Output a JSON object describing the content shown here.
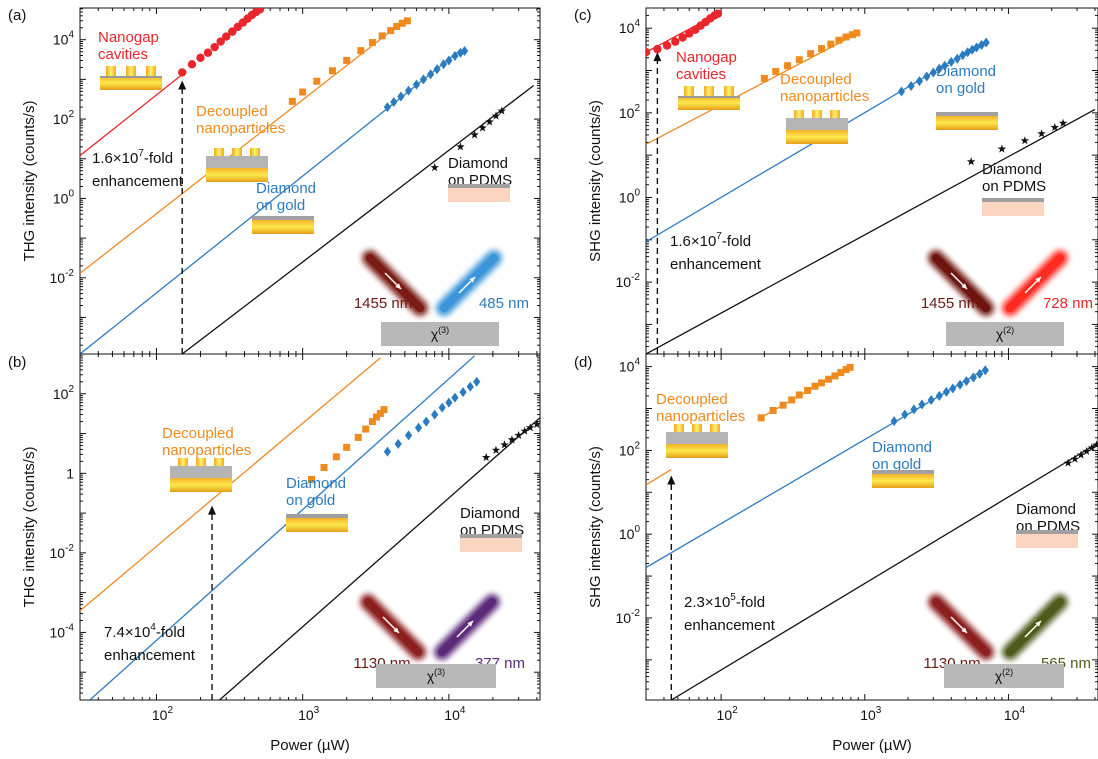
{
  "figure": {
    "xlabel": "Power (µW)"
  },
  "chart_data": [
    {
      "panel": "(a)",
      "type": "line",
      "ylabel": "THG intensity (counts/s)",
      "xscale": "log",
      "yscale": "log",
      "xlim": [
        30,
        42000
      ],
      "ylim": [
        0.00012,
        63000
      ],
      "xticks": [
        "10^2",
        "10^3",
        "10^4"
      ],
      "yticks": [
        "10^-2",
        "10^0",
        "10^2",
        "10^4"
      ],
      "series": [
        {
          "name": "Nanogap cavities",
          "color": "#e8262b",
          "marker": "circle",
          "fit": [
            [
              30,
              12
            ],
            [
              160,
              1600
            ]
          ],
          "points": [
            [
              150,
              1500
            ],
            [
              175,
              2400
            ],
            [
              200,
              3500
            ],
            [
              225,
              4700
            ],
            [
              250,
              6500
            ],
            [
              275,
              9000
            ],
            [
              300,
              12000
            ],
            [
              330,
              16000
            ],
            [
              360,
              21000
            ],
            [
              390,
              27000
            ],
            [
              420,
              34000
            ],
            [
              450,
              42000
            ],
            [
              480,
              50000
            ],
            [
              510,
              58000
            ]
          ]
        },
        {
          "name": "Decoupled nanoparticles",
          "color": "#ef8a1f",
          "marker": "square",
          "fit": [
            [
              30,
              0.013
            ],
            [
              5000,
              31000
            ]
          ],
          "points": [
            [
              850,
              280
            ],
            [
              1000,
              480
            ],
            [
              1250,
              900
            ],
            [
              1600,
              1650
            ],
            [
              2000,
              3000
            ],
            [
              2500,
              5300
            ],
            [
              3000,
              8500
            ],
            [
              3500,
              12500
            ],
            [
              4000,
              17000
            ],
            [
              4400,
              21500
            ],
            [
              4800,
              26000
            ],
            [
              5200,
              30000
            ]
          ]
        },
        {
          "name": "Diamond on gold",
          "color": "#2b7bc0",
          "marker": "diamond",
          "fit": [
            [
              30,
              0.00012
            ],
            [
              12000,
              5500
            ]
          ],
          "points": [
            [
              3800,
              200
            ],
            [
              4200,
              270
            ],
            [
              4700,
              370
            ],
            [
              5300,
              520
            ],
            [
              6000,
              740
            ],
            [
              6700,
              1000
            ],
            [
              7500,
              1350
            ],
            [
              8300,
              1800
            ],
            [
              9200,
              2400
            ],
            [
              10000,
              3000
            ],
            [
              11000,
              3900
            ],
            [
              12000,
              4700
            ],
            [
              12800,
              5200
            ]
          ]
        },
        {
          "name": "Diamond on PDMS",
          "color": "#111111",
          "marker": "star",
          "fit": [
            [
              150,
              0.00012
            ],
            [
              38000,
              700
            ]
          ],
          "points": [
            [
              8000,
              6
            ],
            [
              12000,
              20
            ],
            [
              15000,
              40
            ],
            [
              17000,
              60
            ],
            [
              19000,
              85
            ],
            [
              21000,
              120
            ],
            [
              23000,
              160
            ]
          ]
        }
      ],
      "annotations": {
        "enhancement": "1.6×10⁷-fold\nenhancement",
        "input_wavelength": "1455 nm",
        "output_wavelength": "485 nm",
        "chi": "χ⁽³⁾"
      }
    },
    {
      "panel": "(b)",
      "type": "line",
      "ylabel": "THG intensity (counts/s)",
      "xscale": "log",
      "yscale": "log",
      "xlim": [
        30,
        42000
      ],
      "ylim": [
        2e-06,
        1000
      ],
      "xticks": [
        "10^2",
        "10^3",
        "10^4"
      ],
      "yticks": [
        "10^-4",
        "10^-2",
        "1",
        "10^2"
      ],
      "series": [
        {
          "name": "Decoupled nanoparticles",
          "color": "#ef8a1f",
          "marker": "square",
          "fit": [
            [
              30,
              0.00035
            ],
            [
              3400,
              800
            ]
          ],
          "points": [
            [
              1150,
              0.7
            ],
            [
              1400,
              1.4
            ],
            [
              1700,
              2.6
            ],
            [
              2000,
              4.5
            ],
            [
              2400,
              8
            ],
            [
              2700,
              13
            ],
            [
              3000,
              20
            ],
            [
              3200,
              26
            ],
            [
              3400,
              32
            ],
            [
              3600,
              40
            ]
          ]
        },
        {
          "name": "Diamond on gold",
          "color": "#2b7bc0",
          "marker": "diamond",
          "fit": [
            [
              35,
              2e-06
            ],
            [
              15000,
              900
            ]
          ],
          "points": [
            [
              3800,
              3.5
            ],
            [
              4500,
              5.5
            ],
            [
              5300,
              9
            ],
            [
              6200,
              14
            ],
            [
              7000,
              20
            ],
            [
              8000,
              30
            ],
            [
              9000,
              45
            ],
            [
              10000,
              60
            ],
            [
              11000,
              80
            ],
            [
              12500,
              110
            ],
            [
              14000,
              150
            ],
            [
              15500,
              200
            ]
          ]
        },
        {
          "name": "Diamond on PDMS",
          "color": "#111111",
          "marker": "star",
          "fit": [
            [
              270,
              2e-06
            ],
            [
              42000,
              25
            ]
          ],
          "points": [
            [
              18000,
              2.5
            ],
            [
              21000,
              3.8
            ],
            [
              24000,
              5.2
            ],
            [
              27000,
              7
            ],
            [
              30000,
              9
            ],
            [
              33000,
              11.5
            ],
            [
              36000,
              14
            ],
            [
              40000,
              17
            ]
          ]
        }
      ],
      "annotations": {
        "enhancement": "7.4×10⁴-fold\nenhancement",
        "input_wavelength": "1130 nm",
        "output_wavelength": "377 nm",
        "chi": "χ⁽³⁾"
      }
    },
    {
      "panel": "(c)",
      "type": "line",
      "ylabel": "SHG intensity (counts/s)",
      "xscale": "log",
      "yscale": "log",
      "xlim": [
        30,
        42000
      ],
      "ylim": [
        0.0002,
        30000
      ],
      "xticks": [
        "10^2",
        "10^3",
        "10^4"
      ],
      "yticks": [
        "10^-2",
        "10^0",
        "10^2",
        "10^4"
      ],
      "series": [
        {
          "name": "Nanogap cavities",
          "color": "#e8262b",
          "marker": "circle",
          "fit": [
            [
              30,
              2700
            ],
            [
              95,
              22000
            ]
          ],
          "points": [
            [
              30,
              2700
            ],
            [
              36,
              3200
            ],
            [
              42,
              3900
            ],
            [
              48,
              4800
            ],
            [
              54,
              6000
            ],
            [
              60,
              7500
            ],
            [
              66,
              9200
            ],
            [
              72,
              11500
            ],
            [
              78,
              14000
            ],
            [
              84,
              17000
            ],
            [
              90,
              20000
            ],
            [
              95,
              22000
            ]
          ]
        },
        {
          "name": "Decoupled nanoparticles",
          "color": "#ef8a1f",
          "marker": "square",
          "fit": [
            [
              30,
              18
            ],
            [
              900,
              7700
            ]
          ],
          "points": [
            [
              200,
              650
            ],
            [
              240,
              950
            ],
            [
              290,
              1300
            ],
            [
              350,
              1800
            ],
            [
              420,
              2500
            ],
            [
              500,
              3300
            ],
            [
              580,
              4200
            ],
            [
              660,
              5200
            ],
            [
              740,
              6200
            ],
            [
              820,
              7000
            ],
            [
              880,
              7700
            ]
          ]
        },
        {
          "name": "Diamond on gold",
          "color": "#2b7bc0",
          "marker": "diamond",
          "fit": [
            [
              30,
              0.09
            ],
            [
              7000,
              5000
            ]
          ],
          "points": [
            [
              1800,
              320
            ],
            [
              2100,
              430
            ],
            [
              2400,
              560
            ],
            [
              2700,
              720
            ],
            [
              3000,
              900
            ],
            [
              3300,
              1100
            ],
            [
              3600,
              1300
            ],
            [
              4000,
              1600
            ],
            [
              4400,
              1900
            ],
            [
              4800,
              2300
            ],
            [
              5200,
              2700
            ],
            [
              5600,
              3100
            ],
            [
              6000,
              3500
            ],
            [
              6500,
              4000
            ],
            [
              7000,
              4600
            ]
          ]
        },
        {
          "name": "Diamond on PDMS",
          "color": "#111111",
          "marker": "star",
          "fit": [
            [
              30,
              0.0002
            ],
            [
              40000,
              120
            ]
          ],
          "points": [
            [
              5500,
              7
            ],
            [
              9000,
              14
            ],
            [
              13000,
              22
            ],
            [
              17000,
              32
            ],
            [
              21000,
              45
            ],
            [
              24000,
              57
            ]
          ]
        }
      ],
      "annotations": {
        "enhancement": "1.6×10⁷-fold\nenhancement",
        "input_wavelength": "1455 nm",
        "output_wavelength": "728 nm",
        "chi": "χ⁽²⁾"
      }
    },
    {
      "panel": "(d)",
      "type": "line",
      "ylabel": "SHG intensity (counts/s)",
      "xscale": "log",
      "yscale": "log",
      "xlim": [
        30,
        42000
      ],
      "ylim": [
        0.00011,
        20000
      ],
      "xticks": [
        "10^2",
        "10^3",
        "10^4"
      ],
      "yticks": [
        "10^-2",
        "10^0",
        "10^2",
        "10^4"
      ],
      "series": [
        {
          "name": "Decoupled nanoparticles",
          "color": "#ef8a1f",
          "marker": "square",
          "fit": [
            [
              30,
              15
            ],
            [
              45,
              35
            ]
          ],
          "fit2": [
            [
              180,
              550
            ],
            [
              800,
              10000
            ]
          ],
          "points": [
            [
              190,
              600
            ],
            [
              230,
              900
            ],
            [
              270,
              1200
            ],
            [
              310,
              1600
            ],
            [
              350,
              2100
            ],
            [
              400,
              2700
            ],
            [
              450,
              3400
            ],
            [
              500,
              4100
            ],
            [
              560,
              5000
            ],
            [
              620,
              6000
            ],
            [
              680,
              7200
            ],
            [
              740,
              8500
            ],
            [
              790,
              9600
            ]
          ]
        },
        {
          "name": "Diamond on gold",
          "color": "#2b7bc0",
          "marker": "diamond",
          "fit": [
            [
              30,
              0.16
            ],
            [
              7000,
              9000
            ]
          ],
          "points": [
            [
              1600,
              500
            ],
            [
              1900,
              720
            ],
            [
              2200,
              950
            ],
            [
              2500,
              1250
            ],
            [
              2900,
              1600
            ],
            [
              3300,
              2000
            ],
            [
              3700,
              2500
            ],
            [
              4100,
              3000
            ],
            [
              4600,
              3700
            ],
            [
              5100,
              4500
            ],
            [
              5700,
              5500
            ],
            [
              6300,
              6700
            ],
            [
              6900,
              8200
            ]
          ]
        },
        {
          "name": "Diamond on PDMS",
          "color": "#111111",
          "marker": "star",
          "fit": [
            [
              45,
              0.00011
            ],
            [
              42000,
              150
            ]
          ],
          "points": [
            [
              26000,
              50
            ],
            [
              29000,
              62
            ],
            [
              32000,
              78
            ],
            [
              35000,
              95
            ],
            [
              38000,
              115
            ],
            [
              41000,
              135
            ]
          ]
        }
      ],
      "annotations": {
        "enhancement": "2.3×10⁵-fold\nenhancement",
        "input_wavelength": "1130 nm",
        "output_wavelength": "565 nm",
        "chi": "χ⁽²⁾"
      }
    }
  ]
}
